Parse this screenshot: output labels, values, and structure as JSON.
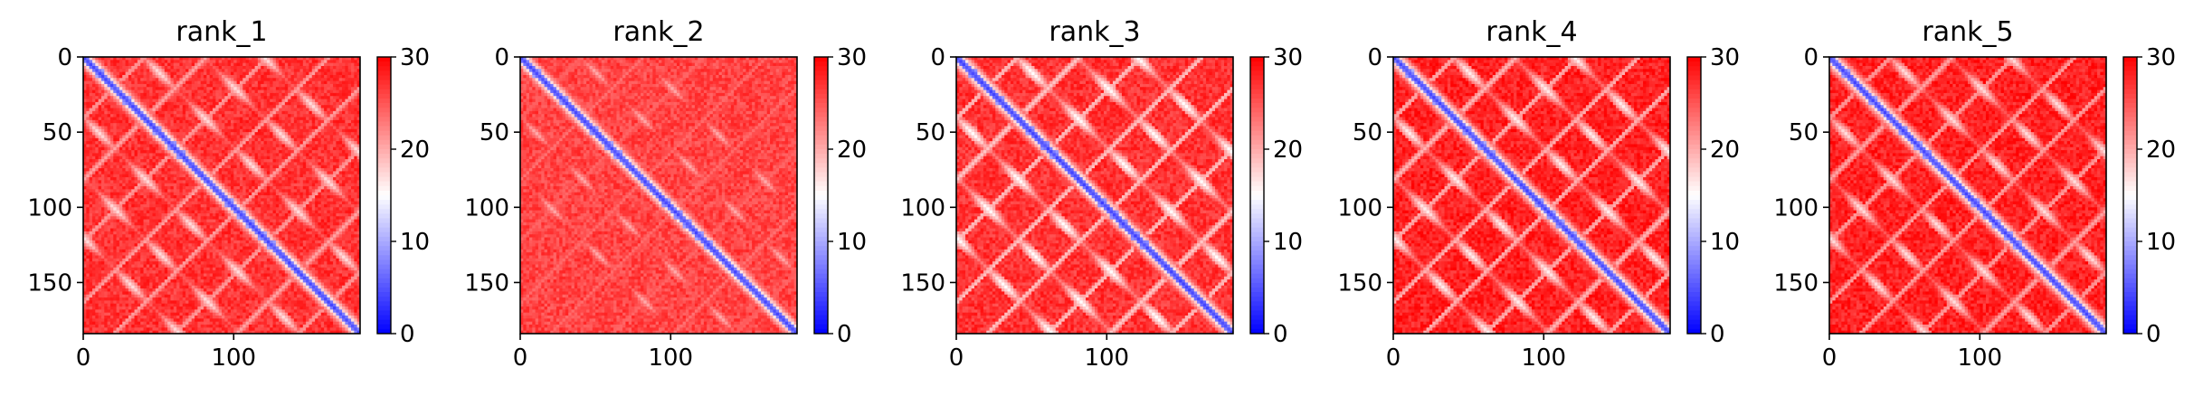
{
  "chart_data": [
    {
      "type": "heatmap",
      "title": "rank_1",
      "matrix_size": 184,
      "x_ticks": [
        0,
        100
      ],
      "y_ticks": [
        0,
        50,
        100,
        150
      ],
      "xlim": [
        0,
        184
      ],
      "ylim": [
        184,
        0
      ],
      "colorbar": {
        "ticks": [
          0,
          10,
          20,
          30
        ],
        "range": [
          0,
          30
        ],
        "cmap": "bwr"
      },
      "pattern": {
        "diagonal_value": 3.8,
        "background_value": 27,
        "stripe_offsets": [
          40,
          80,
          120
        ],
        "stripe_value": 17
      }
    },
    {
      "type": "heatmap",
      "title": "rank_2",
      "matrix_size": 184,
      "x_ticks": [
        0,
        100
      ],
      "y_ticks": [
        0,
        50,
        100,
        150
      ],
      "xlim": [
        0,
        184
      ],
      "ylim": [
        184,
        0
      ],
      "colorbar": {
        "ticks": [
          0,
          10,
          20,
          30
        ],
        "range": [
          0,
          30
        ],
        "cmap": "bwr"
      },
      "pattern": {
        "diagonal_value": 3.8,
        "background_value": 26,
        "stripe_offsets": [
          40,
          80
        ],
        "stripe_value": 20
      }
    },
    {
      "type": "heatmap",
      "title": "rank_3",
      "matrix_size": 184,
      "x_ticks": [
        0,
        100
      ],
      "y_ticks": [
        0,
        50,
        100,
        150
      ],
      "xlim": [
        0,
        184
      ],
      "ylim": [
        184,
        0
      ],
      "colorbar": {
        "ticks": [
          0,
          10,
          20,
          30
        ],
        "range": [
          0,
          30
        ],
        "cmap": "bwr"
      },
      "pattern": {
        "diagonal_value": 3.5,
        "background_value": 27,
        "stripe_offsets": [
          40,
          80,
          120
        ],
        "stripe_value": 15
      }
    },
    {
      "type": "heatmap",
      "title": "rank_4",
      "matrix_size": 184,
      "x_ticks": [
        0,
        100
      ],
      "y_ticks": [
        0,
        50,
        100,
        150
      ],
      "xlim": [
        0,
        184
      ],
      "ylim": [
        184,
        0
      ],
      "colorbar": {
        "ticks": [
          0,
          10,
          20,
          30
        ],
        "range": [
          0,
          30
        ],
        "cmap": "bwr"
      },
      "pattern": {
        "diagonal_value": 3.8,
        "background_value": 28,
        "stripe_offsets": [
          40,
          80,
          120
        ],
        "stripe_value": 16
      }
    },
    {
      "type": "heatmap",
      "title": "rank_5",
      "matrix_size": 184,
      "x_ticks": [
        0,
        100
      ],
      "y_ticks": [
        0,
        50,
        100,
        150
      ],
      "xlim": [
        0,
        184
      ],
      "ylim": [
        184,
        0
      ],
      "colorbar": {
        "ticks": [
          0,
          10,
          20,
          30
        ],
        "range": [
          0,
          30
        ],
        "cmap": "bwr"
      },
      "pattern": {
        "diagonal_value": 3.8,
        "background_value": 28,
        "stripe_offsets": [
          40,
          80,
          120
        ],
        "stripe_value": 17
      }
    }
  ],
  "colors": {
    "low": "#0000ff",
    "mid": "#ffffff",
    "high": "#ff0000"
  }
}
